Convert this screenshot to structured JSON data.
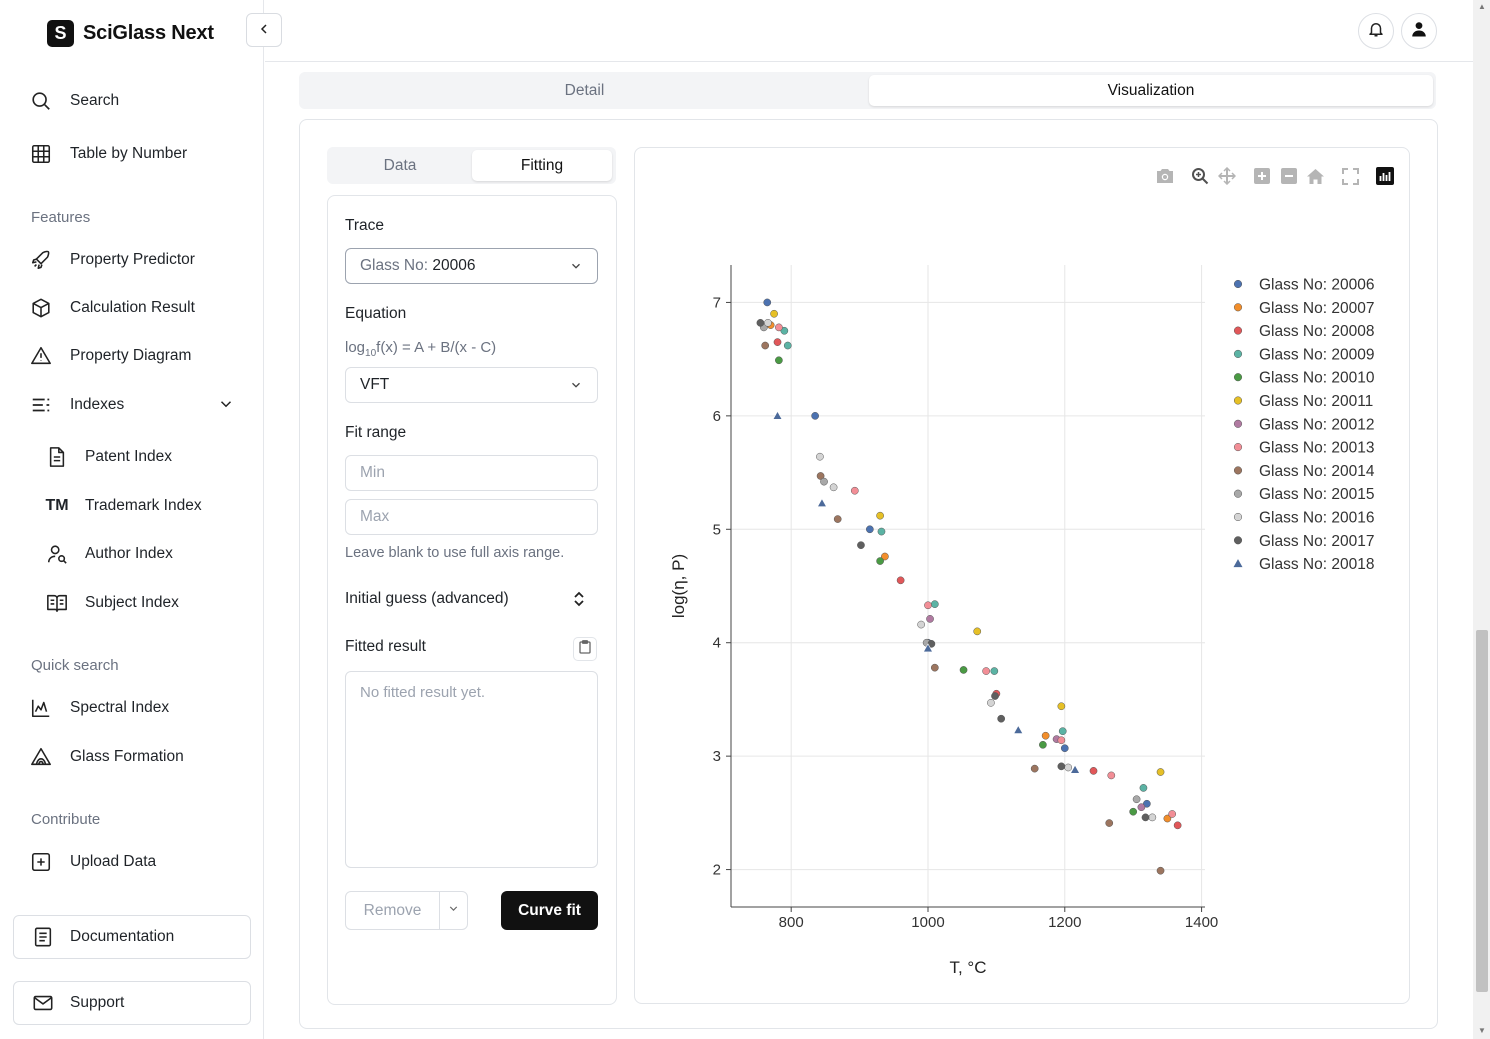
{
  "brand": {
    "logo_letter": "S",
    "name": "SciGlass Next"
  },
  "sidebar": {
    "nav": [
      {
        "label": "Search",
        "icon": "search-icon"
      },
      {
        "label": "Table by Number",
        "icon": "table-icon"
      }
    ],
    "features_title": "Features",
    "features": [
      {
        "label": "Property Predictor",
        "icon": "rocket-icon"
      },
      {
        "label": "Calculation Result",
        "icon": "cube-icon"
      },
      {
        "label": "Property Diagram",
        "icon": "triangle-diagram-icon"
      },
      {
        "label": "Indexes",
        "icon": "list-icon"
      }
    ],
    "indexes": [
      {
        "label": "Patent Index",
        "icon": "document-icon"
      },
      {
        "label": "Trademark Index",
        "icon": "TM"
      },
      {
        "label": "Author Index",
        "icon": "user-search-icon"
      },
      {
        "label": "Subject Index",
        "icon": "book-icon"
      }
    ],
    "quick_title": "Quick search",
    "quick": [
      {
        "label": "Spectral Index",
        "icon": "line-chart-icon"
      },
      {
        "label": "Glass Formation",
        "icon": "triangle-region-icon"
      }
    ],
    "contribute_title": "Contribute",
    "contribute": [
      {
        "label": "Upload Data",
        "icon": "plus-square-icon"
      }
    ],
    "documentation": "Documentation",
    "support": "Support"
  },
  "main_tabs": {
    "detail": "Detail",
    "visualization": "Visualization",
    "active": "Visualization"
  },
  "sub_tabs": {
    "data": "Data",
    "fitting": "Fitting",
    "active": "Fitting"
  },
  "fitting": {
    "trace_label": "Trace",
    "trace_prefix": "Glass No:",
    "trace_value": "20006",
    "equation_label": "Equation",
    "equation_formula_pre": "log",
    "equation_formula_sub": "10",
    "equation_formula_post": "f(x) = A + B/(x - C)",
    "equation_value": "VFT",
    "fit_range_label": "Fit range",
    "min_placeholder": "Min",
    "max_placeholder": "Max",
    "range_hint": "Leave blank to use full axis range.",
    "initial_guess_label": "Initial guess (advanced)",
    "fitted_result_label": "Fitted result",
    "fitted_result_placeholder": "No fitted result yet.",
    "remove_label": "Remove",
    "curve_fit_label": "Curve fit"
  },
  "chart_data": {
    "type": "scatter",
    "xlabel": "T, °C",
    "ylabel": "log(η, P)",
    "xlim": [
      712,
      1405
    ],
    "ylim": [
      1.67,
      7.33
    ],
    "xticks": [
      800,
      1000,
      1200,
      1400
    ],
    "yticks": [
      2,
      3,
      4,
      5,
      6,
      7
    ],
    "grid": true,
    "legend": "right",
    "series": [
      {
        "name": "Glass No: 20006",
        "color": "#4c72b0",
        "marker": "circle",
        "points": [
          [
            765,
            7.0
          ],
          [
            835,
            6.0
          ],
          [
            915,
            5.0
          ],
          [
            1000,
            4.0
          ],
          [
            1200,
            3.07
          ],
          [
            1320,
            2.58
          ]
        ]
      },
      {
        "name": "Glass No: 20007",
        "color": "#f28e2b",
        "marker": "circle",
        "points": [
          [
            770,
            6.8
          ],
          [
            937,
            4.76
          ],
          [
            1172,
            3.18
          ],
          [
            1350,
            2.45
          ]
        ]
      },
      {
        "name": "Glass No: 20008",
        "color": "#e15759",
        "marker": "circle",
        "points": [
          [
            780,
            6.65
          ],
          [
            960,
            4.55
          ],
          [
            1100,
            3.55
          ],
          [
            1242,
            2.87
          ],
          [
            1365,
            2.39
          ]
        ]
      },
      {
        "name": "Glass No: 20009",
        "color": "#5bb3a4",
        "marker": "circle",
        "points": [
          [
            790,
            6.75
          ],
          [
            795,
            6.62
          ],
          [
            932,
            4.98
          ],
          [
            1010,
            4.34
          ],
          [
            1097,
            3.75
          ],
          [
            1197,
            3.22
          ],
          [
            1315,
            2.72
          ]
        ]
      },
      {
        "name": "Glass No: 20010",
        "color": "#4a9a44",
        "marker": "circle",
        "points": [
          [
            782,
            6.49
          ],
          [
            930,
            4.72
          ],
          [
            1052,
            3.76
          ],
          [
            1168,
            3.1
          ],
          [
            1300,
            2.51
          ]
        ]
      },
      {
        "name": "Glass No: 20011",
        "color": "#e6c026",
        "marker": "circle",
        "points": [
          [
            775,
            6.9
          ],
          [
            930,
            5.12
          ],
          [
            1072,
            4.1
          ],
          [
            1195,
            3.44
          ],
          [
            1340,
            2.86
          ]
        ]
      },
      {
        "name": "Glass No: 20012",
        "color": "#b07aa1",
        "marker": "circle",
        "points": [
          [
            1003,
            4.21
          ],
          [
            1188,
            3.15
          ],
          [
            1312,
            2.55
          ]
        ]
      },
      {
        "name": "Glass No: 20013",
        "color": "#f28e96",
        "marker": "circle",
        "points": [
          [
            782,
            6.78
          ],
          [
            893,
            5.34
          ],
          [
            1000,
            4.33
          ],
          [
            1085,
            3.75
          ],
          [
            1195,
            3.14
          ],
          [
            1268,
            2.83
          ],
          [
            1357,
            2.49
          ]
        ]
      },
      {
        "name": "Glass No: 20014",
        "color": "#9c755f",
        "marker": "circle",
        "points": [
          [
            762,
            6.62
          ],
          [
            843,
            5.47
          ],
          [
            868,
            5.09
          ],
          [
            1010,
            3.78
          ],
          [
            1156,
            2.89
          ],
          [
            1265,
            2.41
          ],
          [
            1340,
            1.99
          ]
        ]
      },
      {
        "name": "Glass No: 20015",
        "color": "#a8a8a8",
        "marker": "circle",
        "points": [
          [
            760,
            6.78
          ],
          [
            848,
            5.42
          ],
          [
            998,
            4.0
          ],
          [
            1305,
            2.62
          ]
        ]
      },
      {
        "name": "Glass No: 20016",
        "color": "#d4d4d4",
        "marker": "circle",
        "points": [
          [
            766,
            6.82
          ],
          [
            842,
            5.64
          ],
          [
            862,
            5.37
          ],
          [
            990,
            4.16
          ],
          [
            1092,
            3.47
          ],
          [
            1205,
            2.9
          ],
          [
            1328,
            2.46
          ]
        ]
      },
      {
        "name": "Glass No: 20017",
        "color": "#5f5f5f",
        "marker": "circle",
        "points": [
          [
            755,
            6.82
          ],
          [
            902,
            4.86
          ],
          [
            1005,
            3.99
          ],
          [
            1098,
            3.53
          ],
          [
            1107,
            3.33
          ],
          [
            1195,
            2.91
          ],
          [
            1318,
            2.46
          ]
        ]
      },
      {
        "name": "Glass No: 20018",
        "color": "#4c6a9a",
        "marker": "triangle",
        "points": [
          [
            780,
            6.0
          ],
          [
            845,
            5.23
          ],
          [
            1000,
            3.95
          ],
          [
            1132,
            3.23
          ],
          [
            1215,
            2.88
          ]
        ]
      }
    ]
  },
  "modebar": [
    "camera-icon",
    "zoom-icon",
    "pan-icon",
    "zoom-in-icon",
    "zoom-out-icon",
    "home-icon",
    "autoscale-icon",
    "plotly-logo-icon"
  ]
}
